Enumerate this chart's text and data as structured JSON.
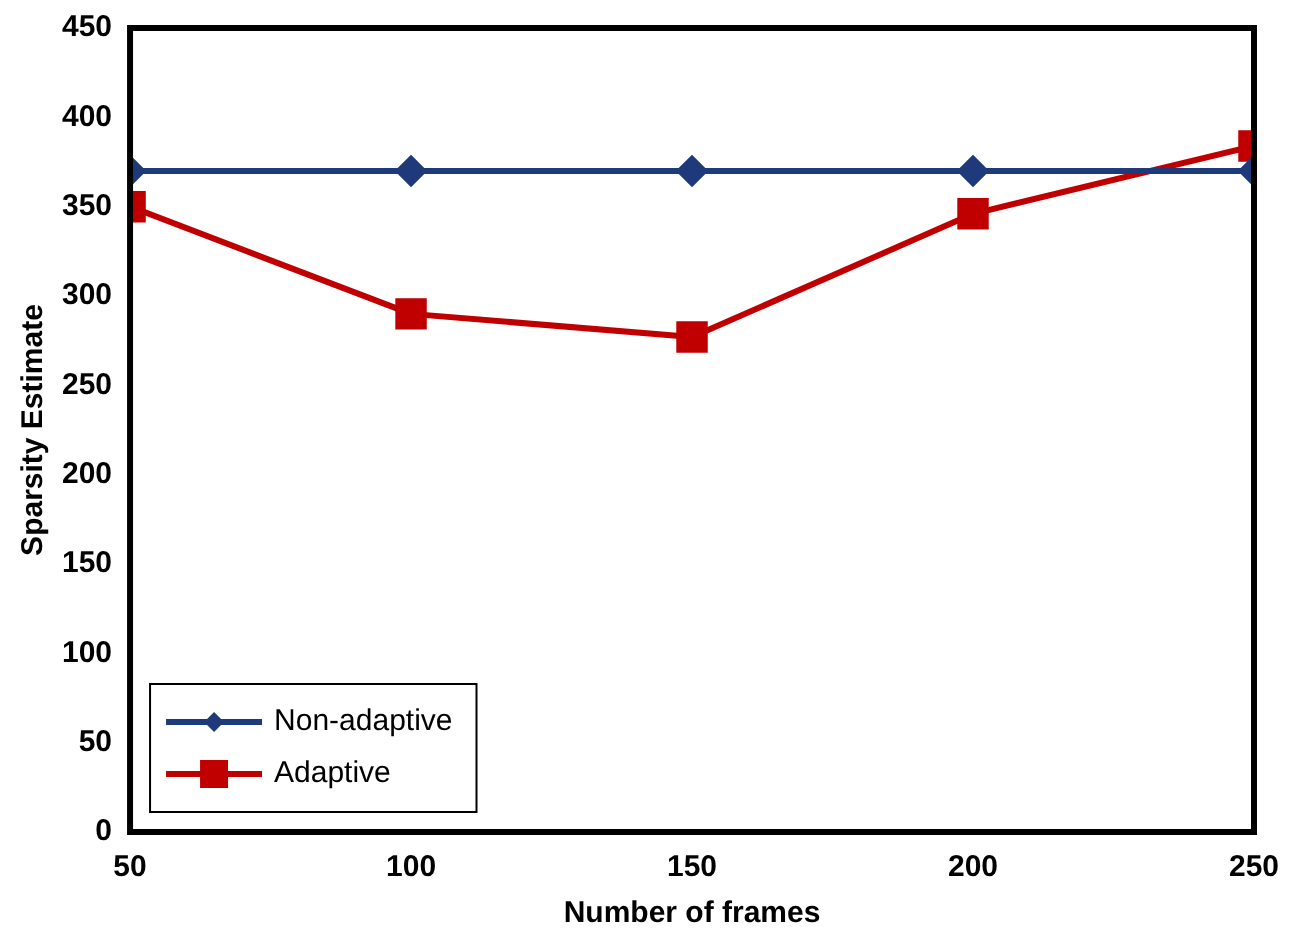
{
  "chart_data": {
    "type": "line",
    "xlabel": "Number of frames",
    "ylabel": "Sparsity Estimate",
    "x": [
      50,
      100,
      150,
      200,
      250
    ],
    "xlim": [
      50,
      250
    ],
    "xticks": [
      50,
      100,
      150,
      200,
      250
    ],
    "ylim": [
      0,
      450
    ],
    "yticks": [
      0,
      50,
      100,
      150,
      200,
      250,
      300,
      350,
      400,
      450
    ],
    "grid": false,
    "legend": "bottom left",
    "line_style": "solid",
    "series": [
      {
        "name": "Non-adaptive",
        "color": "#1f3a7a",
        "marker": "diamond",
        "values": [
          370,
          370,
          370,
          370,
          370
        ]
      },
      {
        "name": "Adaptive",
        "color": "#c00000",
        "marker": "square",
        "values": [
          350,
          290,
          277,
          346,
          384
        ]
      }
    ]
  }
}
